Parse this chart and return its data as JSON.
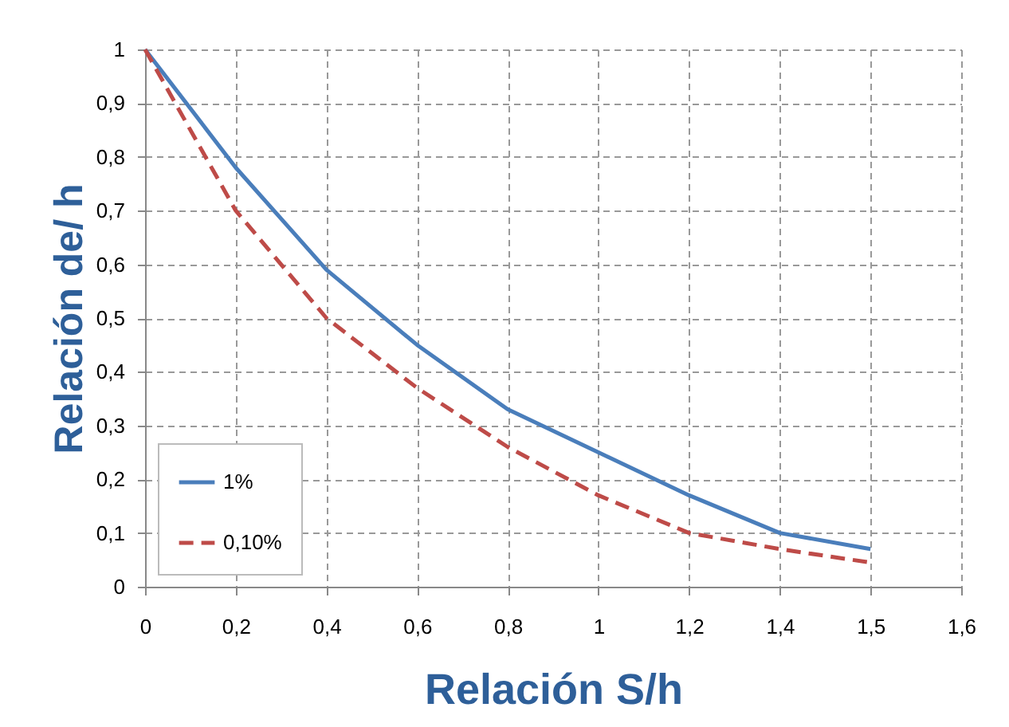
{
  "chart_data": {
    "type": "line",
    "xlabel": "Relación S/h",
    "ylabel": "Relación de/ h",
    "categories": [
      "0",
      "0,2",
      "0,4",
      "0,6",
      "0,8",
      "1",
      "1,2",
      "1,4",
      "1,5",
      "1,6"
    ],
    "series": [
      {
        "name": "1%",
        "color": "#4a7ebb",
        "line_style": "solid",
        "values": [
          1,
          0.78,
          0.59,
          0.45,
          0.33,
          0.25,
          0.17,
          0.1,
          0.07,
          null
        ]
      },
      {
        "name": "0,10%",
        "color": "#be4b48",
        "line_style": "dashed",
        "values": [
          1,
          0.7,
          0.5,
          0.37,
          0.26,
          0.17,
          0.1,
          0.07,
          0.045,
          null
        ]
      }
    ],
    "ylim": [
      0,
      1
    ],
    "yticks": [
      0,
      {
        "value": 0.1,
        "label": "0,1"
      },
      {
        "value": 0.2,
        "label": "0,2"
      },
      {
        "value": 0.3,
        "label": "0,3"
      },
      {
        "value": 0.4,
        "label": "0,4"
      },
      {
        "value": 0.5,
        "label": "0,5"
      },
      {
        "value": 0.6,
        "label": "0,6"
      },
      {
        "value": 0.7,
        "label": "0,7"
      },
      {
        "value": 0.8,
        "label": "0,8"
      },
      {
        "value": 0.9,
        "label": "0,9"
      },
      1
    ],
    "grid": true,
    "legend": "bottom left",
    "marker": "none"
  }
}
